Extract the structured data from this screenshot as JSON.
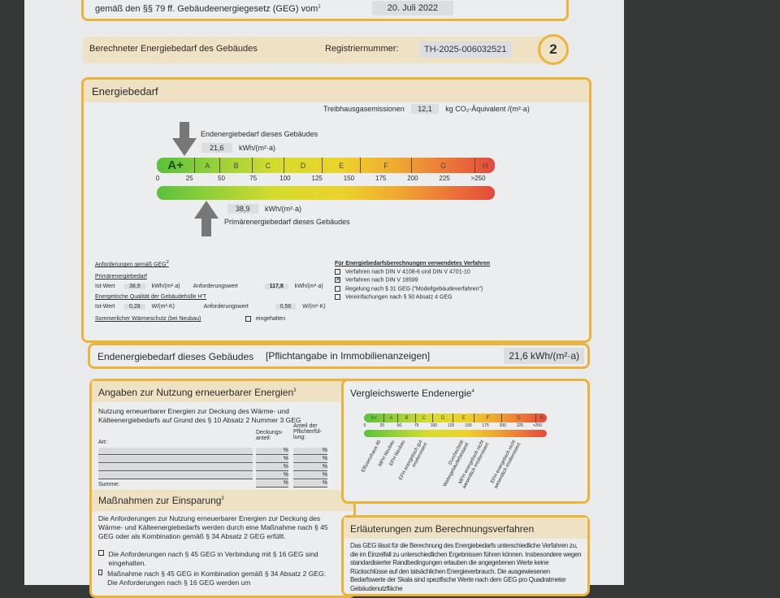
{
  "header": {
    "law_text": "gemäß den §§ 79 ff. Gebäudeenergiegesetz (GEG) vom",
    "footnote": "1",
    "law_date": "20. Juli 2022"
  },
  "band": {
    "title": "Berechneter Energiebedarf des Gebäudes",
    "reg_label": "Registriernummer:",
    "reg_number": "TH-2025-006032521",
    "page_number": "2"
  },
  "energy": {
    "title": "Energiebedarf",
    "ghg_label": "Treibhausgasemissionen",
    "ghg_value": "12,1",
    "ghg_unit": "kg CO₂-Äquivalent /(m²·a)",
    "end_label": "Endenergiebedarf dieses Gebäudes",
    "end_value": "21,6",
    "end_number": 21.6,
    "unit": "kWh/(m²·a)",
    "primary_label": "Primärenergiebedarf dieses Gebäudes",
    "primary_value": "38,9",
    "primary_number": 38.9,
    "classes": [
      "A+",
      "A",
      "B",
      "C",
      "D",
      "E",
      "F",
      "G",
      "H"
    ],
    "ticks": [
      "0",
      "25",
      "50",
      "75",
      "100",
      "125",
      "150",
      "175",
      "200",
      "225",
      ">250"
    ],
    "arrow_color": "#777777"
  },
  "requirements": {
    "title": "Anforderungen gemäß GEG",
    "footnote": "2",
    "primary_title": "Primärenergiebedarf",
    "ist_label": "Ist-Wert",
    "primary_ist": "38,9",
    "primary_unit": "kWh/(m²·a)",
    "req_label": "Anforderungswert",
    "primary_req": "117,8",
    "envelope_title": "Energetische Qualität der Gebäudehülle H′T",
    "env_ist": "0,28",
    "env_unit": "W/(m²·K)",
    "env_req": "0,56",
    "summer_label": "Sommerlicher Wärmeschutz (bei Neubau)",
    "summer_check": "eingehalten"
  },
  "methods": {
    "title": "Für Energiebedarfsberechnungen verwendetes Verfahren",
    "items": [
      {
        "label": "Verfahren nach DIN V 4108-6 und DIN V 4701-10",
        "checked": false
      },
      {
        "label": "Verfahren nach DIN V 18599",
        "checked": true
      },
      {
        "label": "Regelung nach § 31 GEG (\"Modellgebäudeverfahren\")",
        "checked": false
      },
      {
        "label": "Vereinfachungen nach § 50 Absatz 4 GEG",
        "checked": false
      }
    ],
    "check_mark": "✕"
  },
  "end_strip": {
    "label": "Endenergiebedarf dieses Gebäudes",
    "note": "[Pflichtangabe in Immobilienanzeigen]",
    "value": "21,6 kWh/(m²·a)"
  },
  "renewable": {
    "title": "Angaben zur Nutzung erneuerbarer Energien",
    "footnote": "3",
    "intro": "Nutzung erneuerbarer Energien zur Deckung des Wärme- und Kälteenergiebedarfs auf Grund des § 10 Absatz 2 Nummer 3 GEG",
    "col_art": "Art:",
    "col_share": "Deckungs-anteil:",
    "col_duty": "Anteil der Pflichterfül-lung:",
    "percent": "%",
    "sum_label": "Summe:"
  },
  "measures": {
    "title": "Maßnahmen zur Einsparung",
    "footnote": "3",
    "intro": "Die Anforderungen zur Nutzung erneuerbarer Energien zur Deckung des Wärme- und Kälteenergiebedarfs werden durch eine Maßnahme nach § 45 GEG oder als Kombination gemäß § 34 Absatz 2 GEG erfüllt.",
    "item1": "Die Anforderungen nach § 45 GEG in Verbindung mit § 16 GEG sind eingehalten.",
    "item2": "Maßnahme nach § 45 GEG in Kombination gemäß § 34 Absatz 2 GEG: Die Anforderungen nach § 16 GEG werden um",
    "percent": "%"
  },
  "comparison": {
    "title": "Vergleichswerte Endenergie",
    "footnote": "4",
    "refs": [
      {
        "label": "Effizienzhaus 40",
        "value": 20
      },
      {
        "label": "MFH Neubau",
        "value": 40
      },
      {
        "label": "EFH Neubau",
        "value": 55
      },
      {
        "label": "EFH energetisch gut modernisiert",
        "value": 80
      },
      {
        "label": "Durchschnitt Wohngebäudebestand",
        "value": 140
      },
      {
        "label": "MFH energetisch nicht wesentlich modernisiert",
        "value": 170
      },
      {
        "label": "EFH energetisch nicht wesentlich modernisiert",
        "value": 215
      }
    ]
  },
  "explanation": {
    "title": "Erläuterungen zum Berechnungsverfahren",
    "text": "Das GEG lässt für die Berechnung des Energiebedarfs unterschiedliche Verfahren zu, die im Einzelfall zu unterschiedlichen Ergebnissen führen können. Insbesondere wegen standardisierter Randbedingungen erlauben die angegebenen Werte keine Rückschlüsse auf den tatsächlichen Energieverbrauch. Die ausgewiesenen Bedarfswerte der Skala sind spezifische Werte nach dem GEG pro Quadratmeter Gebäudenutzfläche"
  },
  "colors": {
    "accent": "#eab43a",
    "band": "#efe2c4",
    "background": "#353837"
  }
}
